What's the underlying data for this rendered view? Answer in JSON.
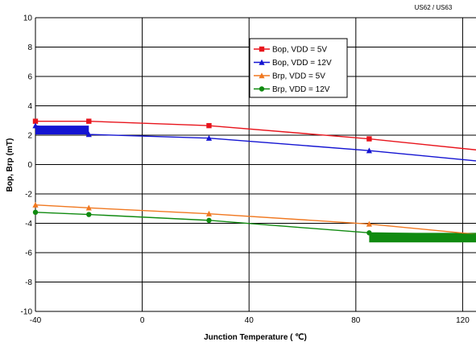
{
  "corner_label": "US62 / US63",
  "chart_data": {
    "type": "line",
    "title": "",
    "xlabel": "Junction Temperature ( ℃)",
    "ylabel": "Bop, Brp (mT)",
    "xlim": [
      -40,
      125
    ],
    "ylim": [
      -10,
      10
    ],
    "x_ticks": [
      -40,
      0,
      40,
      80,
      120
    ],
    "y_ticks": [
      -10,
      -8,
      -6,
      -4,
      -2,
      0,
      2,
      4,
      6,
      8,
      10
    ],
    "grid": true,
    "legend_position": "top-center",
    "series": [
      {
        "name": "Bop, VDD = 5V",
        "color": "#e8141c",
        "marker": "square",
        "x": [
          -40,
          -20,
          25,
          85,
          125
        ],
        "y": [
          2.95,
          2.95,
          2.65,
          1.75,
          1.0
        ]
      },
      {
        "name": "Bop, VDD = 12V",
        "color": "#1414d2",
        "marker": "triangle",
        "x": [
          -40,
          -20,
          25,
          85,
          125
        ],
        "y": [
          2.65,
          2.05,
          1.8,
          0.95,
          0.25
        ]
      },
      {
        "name": "Brp, VDD = 5V",
        "color": "#f07820",
        "marker": "triangle",
        "x": [
          -40,
          -20,
          25,
          85,
          125
        ],
        "y": [
          -2.75,
          -2.95,
          -3.35,
          -4.05,
          -4.75
        ]
      },
      {
        "name": "Brp, VDD = 12V",
        "color": "#108a10",
        "marker": "circle",
        "x": [
          -40,
          -20,
          25,
          85,
          125
        ],
        "y": [
          -3.25,
          -3.4,
          -3.8,
          -4.65,
          -4.75
        ]
      }
    ],
    "band_annotations": [
      {
        "series": "Bop, VDD = 12V",
        "x_range": [
          -40,
          -20
        ],
        "y_range": [
          2.05,
          2.65
        ],
        "color": "#1414d2"
      },
      {
        "series": "Brp, VDD = 12V",
        "x_range": [
          85,
          125
        ],
        "y_range": [
          -5.3,
          -4.65
        ],
        "color": "#108a10"
      }
    ]
  }
}
